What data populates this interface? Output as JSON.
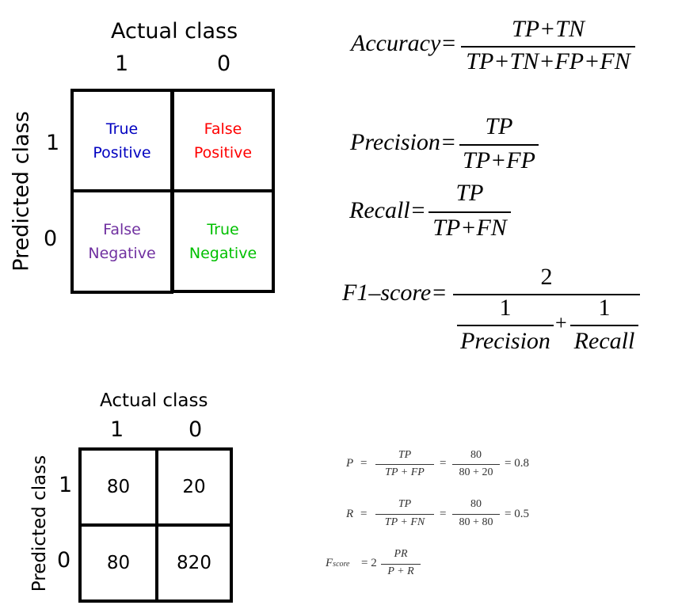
{
  "matrix1": {
    "axis_top": "Actual class",
    "axis_side": "Predicted class",
    "col_labels": [
      "1",
      "0"
    ],
    "row_labels": [
      "1",
      "0"
    ],
    "cells": {
      "tp": [
        "True",
        "Positive"
      ],
      "fp": [
        "False",
        "Positive"
      ],
      "fn": [
        "False",
        "Negative"
      ],
      "tn": [
        "True",
        "Negative"
      ]
    },
    "colors": {
      "tp": "#0000c0",
      "fp": "#ff0000",
      "fn": "#7030a0",
      "tn": "#00c000"
    }
  },
  "formulas": {
    "accuracy": {
      "lhs": "Accuracy=",
      "num": "TP+TN",
      "den": "TP+TN+FP+FN"
    },
    "precision": {
      "lhs": "Precision=",
      "num": "TP",
      "den": "TP+FP"
    },
    "recall": {
      "lhs": "Recall=",
      "num": "TP",
      "den": "TP+FN"
    },
    "f1": {
      "lhs": "F1–score=",
      "num": "2",
      "one_a": "1",
      "den_a": "Precision",
      "plus": "+",
      "one_b": "1",
      "den_b": "Recall"
    }
  },
  "matrix2": {
    "axis_top": "Actual class",
    "axis_side": "Predicted class",
    "col_labels": [
      "1",
      "0"
    ],
    "row_labels": [
      "1",
      "0"
    ],
    "cells": {
      "tp": "80",
      "fp": "20",
      "fn": "80",
      "tn": "820"
    }
  },
  "calc": {
    "p": {
      "lhs": "P",
      "eq": "=",
      "num1": "TP",
      "den1": "TP + FP",
      "num2": "80",
      "den2": "80 + 20",
      "result": "= 0.8"
    },
    "r": {
      "lhs": "R",
      "eq": "=",
      "num1": "TP",
      "den1": "TP + FN",
      "num2": "80",
      "den2": "80 + 80",
      "result": "= 0.5"
    },
    "f": {
      "lhs": "F",
      "sub": "score",
      "eq": "= 2",
      "num": "PR",
      "den": "P + R"
    }
  }
}
